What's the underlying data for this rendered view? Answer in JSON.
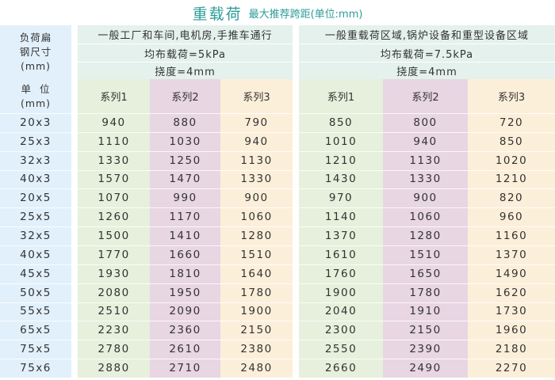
{
  "title": {
    "main": "重载荷",
    "sub": "最大推荐跨距(单位:mm)"
  },
  "left_header": {
    "size": "负荷扁\n钢尺寸\n(mm)",
    "unit": "单  位\n(mm)"
  },
  "groups": [
    {
      "application": "一般工厂和车间,电机房,手推车通行",
      "load": "均布载荷=5kPa",
      "deflection": "挠度=4mm",
      "series": [
        "系列1",
        "系列2",
        "系列3"
      ]
    },
    {
      "application": "一般重载荷区域,锅炉设备和重型设备区域",
      "load": "均布载荷=7.5kPa",
      "deflection": "挠度=4mm",
      "series": [
        "系列1",
        "系列2",
        "系列3"
      ]
    }
  ],
  "rows": [
    {
      "size": "20x3",
      "values": [
        940,
        880,
        790,
        850,
        800,
        720
      ]
    },
    {
      "size": "25x3",
      "values": [
        1110,
        1030,
        940,
        1010,
        940,
        850
      ]
    },
    {
      "size": "32x3",
      "values": [
        1330,
        1250,
        1130,
        1210,
        1130,
        1020
      ]
    },
    {
      "size": "40x3",
      "values": [
        1570,
        1470,
        1330,
        1430,
        1330,
        1210
      ]
    },
    {
      "size": "20x5",
      "values": [
        1070,
        990,
        900,
        970,
        900,
        820
      ]
    },
    {
      "size": "25x5",
      "values": [
        1260,
        1170,
        1060,
        1140,
        1060,
        960
      ]
    },
    {
      "size": "32x5",
      "values": [
        1500,
        1410,
        1280,
        1370,
        1280,
        1160
      ]
    },
    {
      "size": "40x5",
      "values": [
        1770,
        1660,
        1510,
        1610,
        1510,
        1370
      ]
    },
    {
      "size": "45x5",
      "values": [
        1930,
        1810,
        1640,
        1760,
        1650,
        1490
      ]
    },
    {
      "size": "50x5",
      "values": [
        2080,
        1950,
        1780,
        1900,
        1780,
        1620
      ]
    },
    {
      "size": "55x5",
      "values": [
        2510,
        2090,
        1900,
        2040,
        1910,
        1730
      ]
    },
    {
      "size": "65x5",
      "values": [
        2230,
        2360,
        2150,
        2300,
        2150,
        1960
      ]
    },
    {
      "size": "75x5",
      "values": [
        2780,
        2610,
        2380,
        2550,
        2390,
        2180
      ]
    },
    {
      "size": "75x6",
      "values": [
        2880,
        2710,
        2480,
        2660,
        2490,
        2270
      ]
    }
  ],
  "colors": {
    "title": "#2b9c98",
    "header": "#e4f1ec",
    "size_column": "#e2f0fb",
    "series1": "#e6f0dc",
    "series2": "#e8d6e3",
    "series3": "#fcefda"
  }
}
